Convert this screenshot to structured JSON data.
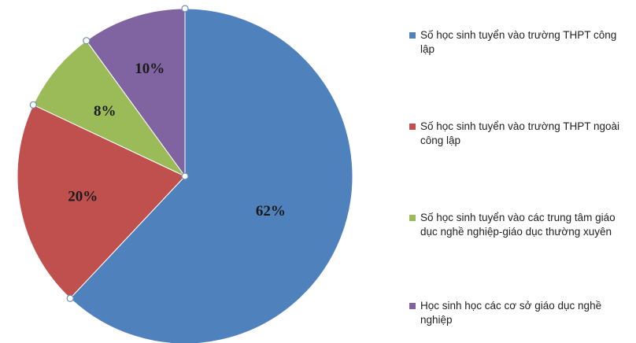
{
  "chart_data": {
    "type": "pie",
    "categories": [
      "Số học sinh tuyển vào trường THPT công lập",
      "Số học sinh tuyển vào trường THPT ngoài công lập",
      "Số học sinh tuyển vào các trung tâm giáo dục nghề nghiệp-giáo dục thường xuyên",
      "Học sinh học các cơ sở giáo dục nghề nghiệp"
    ],
    "values": [
      62,
      20,
      8,
      10
    ],
    "labels": [
      "62%",
      "20%",
      "8%",
      "10%"
    ],
    "colors": [
      "#4f81bd",
      "#c0504d",
      "#9bbb59",
      "#8064a2"
    ],
    "legend_position": "right",
    "start_angle": "top",
    "direction": "clockwise"
  }
}
